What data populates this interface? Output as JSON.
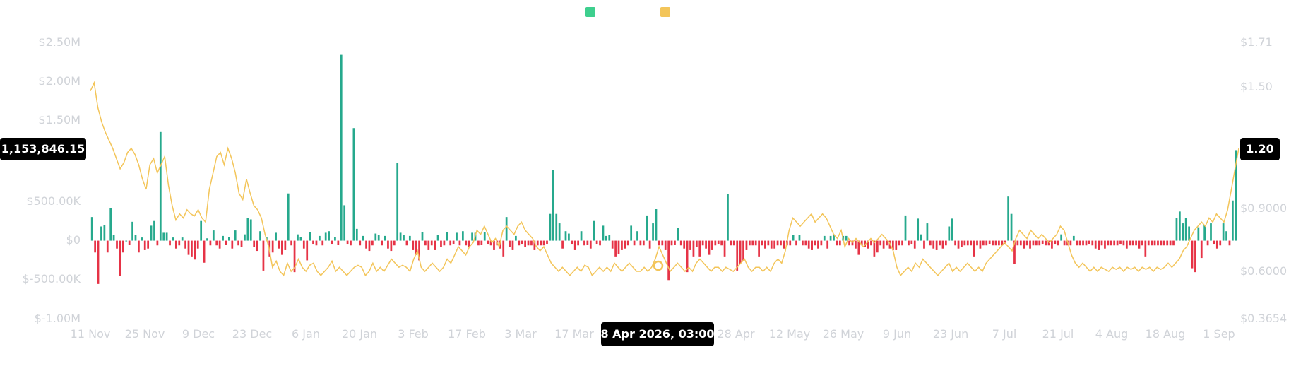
{
  "colors": {
    "positive": "#26a98d",
    "negative": "#e63346",
    "price_line": "#f3c55a",
    "legend_green": "#3ecf8e",
    "legend_yellow": "#f3c55a",
    "axis_text": "#d0d3d8",
    "badge_bg": "#000000",
    "badge_text": "#ffffff"
  },
  "legend": [
    {
      "icon": "green-square-icon",
      "label": ""
    },
    {
      "icon": "yellow-square-icon",
      "label": ""
    }
  ],
  "tooltip": {
    "left_value": "1,153,846.15",
    "right_value": "1.20",
    "date": "8 Apr 2026, 03:00"
  },
  "chart_data": {
    "type": "bar",
    "title": "",
    "xlabel": "",
    "ylabel": "",
    "grid": false,
    "legend_position": "top-center",
    "x_ticks": [
      "11 Nov",
      "25 Nov",
      "9 Dec",
      "23 Dec",
      "6 Jan",
      "20 Jan",
      "3 Feb",
      "17 Feb",
      "3 Mar",
      "17 Mar",
      "28 Apr",
      "12 May",
      "26 May",
      "9 Jun",
      "23 Jun",
      "7 Jul",
      "21 Jul",
      "4 Aug",
      "18 Aug",
      "1 Sep"
    ],
    "y_left_ticks": [
      "$2.50M",
      "$2.00M",
      "$1.50M",
      "$500.00K",
      "$0",
      "$-500.00K",
      "$-1.00M"
    ],
    "y_left_range": [
      -1000000,
      2500000
    ],
    "y_right_ticks": [
      "$1.71",
      "$1.50",
      "$0.9000",
      "$0.6000",
      "$0.3654"
    ],
    "series": [
      {
        "type": "bar",
        "values": [
          300000,
          -150000,
          -550000,
          180000,
          200000,
          -150000,
          410000,
          70000,
          -100000,
          -450000,
          -150000,
          0,
          -50000,
          240000,
          70000,
          -150000,
          40000,
          -120000,
          -100000,
          190000,
          250000,
          -60000,
          1380000,
          100000,
          100000,
          -60000,
          40000,
          -100000,
          -60000,
          40000,
          -100000,
          -180000,
          -200000,
          -240000,
          -100000,
          250000,
          -280000,
          30000,
          -60000,
          130000,
          -60000,
          -100000,
          60000,
          -50000,
          50000,
          -100000,
          130000,
          -60000,
          -80000,
          80000,
          290000,
          270000,
          -80000,
          -130000,
          120000,
          -380000,
          50000,
          -200000,
          -150000,
          100000,
          -100000,
          -180000,
          -120000,
          600000,
          -60000,
          -400000,
          80000,
          50000,
          -100000,
          -250000,
          110000,
          -40000,
          -60000,
          60000,
          -60000,
          100000,
          120000,
          -40000,
          50000,
          -50000,
          2360000,
          450000,
          -40000,
          -60000,
          1430000,
          150000,
          -60000,
          60000,
          -100000,
          -130000,
          -60000,
          90000,
          70000,
          -60000,
          60000,
          -100000,
          -130000,
          -60000,
          990000,
          100000,
          70000,
          -60000,
          60000,
          -120000,
          -180000,
          -250000,
          110000,
          -60000,
          -120000,
          -60000,
          -120000,
          70000,
          -80000,
          -60000,
          110000,
          -60000,
          -40000,
          100000,
          -60000,
          120000,
          -60000,
          -80000,
          100000,
          100000,
          -60000,
          -50000,
          110000,
          -40000,
          -60000,
          -120000,
          -60000,
          -100000,
          -200000,
          300000,
          -80000,
          -120000,
          60000,
          -60000,
          -40000,
          -80000,
          -60000,
          -60000,
          -120000,
          -60000,
          -60000,
          -60000,
          -40000,
          340000,
          900000,
          340000,
          220000,
          -100000,
          120000,
          90000,
          -40000,
          -120000,
          -60000,
          120000,
          -60000,
          -50000,
          -100000,
          250000,
          -40000,
          -60000,
          190000,
          60000,
          70000,
          -100000,
          -200000,
          -170000,
          -120000,
          -100000,
          -60000,
          190000,
          -60000,
          120000,
          -60000,
          -60000,
          320000,
          -100000,
          220000,
          400000,
          -60000,
          -60000,
          -120000,
          -500000,
          -60000,
          -50000,
          160000,
          -60000,
          -100000,
          -400000,
          -120000,
          -200000,
          -80000,
          -200000,
          -60000,
          -100000,
          -180000,
          -120000,
          -60000,
          -40000,
          -60000,
          -200000,
          590000,
          -60000,
          -60000,
          -380000,
          -300000,
          -260000,
          -120000,
          -60000,
          -60000,
          -60000,
          -200000,
          -60000,
          -100000,
          -60000,
          -100000,
          -100000,
          -60000,
          -60000,
          -100000,
          -60000,
          -60000,
          70000,
          -60000,
          70000,
          -60000,
          -60000,
          -100000,
          -120000,
          -60000,
          -100000,
          -60000,
          60000,
          -100000,
          60000,
          80000,
          -60000,
          -60000,
          60000,
          60000,
          -60000,
          -60000,
          -100000,
          -180000,
          -60000,
          -80000,
          -100000,
          -60000,
          -200000,
          -150000,
          -60000,
          -100000,
          -60000,
          -100000,
          -120000,
          -120000,
          -60000,
          -60000,
          320000,
          -60000,
          -40000,
          -100000,
          280000,
          80000,
          -100000,
          220000,
          -60000,
          -100000,
          -120000,
          -60000,
          -100000,
          -60000,
          180000,
          280000,
          -60000,
          -100000,
          -80000,
          -60000,
          -60000,
          -60000,
          -200000,
          -60000,
          -100000,
          -60000,
          -60000,
          -40000,
          -60000,
          -60000,
          -60000,
          -60000,
          -40000,
          560000,
          340000,
          -300000,
          -60000,
          -60000,
          -100000,
          -60000,
          -100000,
          -60000,
          -60000,
          -60000,
          -40000,
          -60000,
          -60000,
          -100000,
          -40000,
          -60000,
          80000,
          -60000,
          -60000,
          -60000,
          60000,
          -60000,
          -60000,
          -60000,
          -60000,
          -40000,
          -60000,
          -100000,
          -120000,
          -60000,
          -100000,
          -60000,
          -60000,
          -60000,
          -60000,
          -40000,
          -60000,
          -100000,
          -60000,
          -60000,
          -60000,
          -100000,
          -60000,
          -200000,
          -60000,
          -60000,
          -60000,
          -60000,
          -60000,
          -60000,
          -60000,
          -60000,
          -60000,
          290000,
          370000,
          220000,
          290000,
          180000,
          -350000,
          -400000,
          170000,
          -220000,
          200000,
          -60000,
          220000,
          -40000,
          -100000,
          -60000,
          220000,
          120000,
          -60000,
          510000,
          1150000
        ]
      },
      {
        "type": "line",
        "name": "",
        "axis": "right",
        "values": [
          1.48,
          1.52,
          1.4,
          1.33,
          1.28,
          1.24,
          1.2,
          1.15,
          1.1,
          1.13,
          1.18,
          1.2,
          1.17,
          1.12,
          1.05,
          1.0,
          1.12,
          1.15,
          1.08,
          1.12,
          1.16,
          1.02,
          0.92,
          0.85,
          0.88,
          0.86,
          0.9,
          0.88,
          0.87,
          0.9,
          0.86,
          0.84,
          1.0,
          1.08,
          1.16,
          1.18,
          1.12,
          1.2,
          1.15,
          1.08,
          0.98,
          0.95,
          1.05,
          0.98,
          0.92,
          0.9,
          0.86,
          0.78,
          0.72,
          0.62,
          0.65,
          0.6,
          0.58,
          0.64,
          0.6,
          0.62,
          0.66,
          0.62,
          0.6,
          0.63,
          0.64,
          0.6,
          0.58,
          0.6,
          0.62,
          0.65,
          0.6,
          0.62,
          0.6,
          0.58,
          0.6,
          0.62,
          0.63,
          0.62,
          0.58,
          0.6,
          0.64,
          0.6,
          0.62,
          0.6,
          0.63,
          0.66,
          0.64,
          0.62,
          0.63,
          0.62,
          0.6,
          0.66,
          0.7,
          0.62,
          0.6,
          0.62,
          0.64,
          0.62,
          0.6,
          0.62,
          0.66,
          0.64,
          0.68,
          0.72,
          0.7,
          0.68,
          0.72,
          0.74,
          0.8,
          0.78,
          0.82,
          0.78,
          0.74,
          0.76,
          0.72,
          0.8,
          0.82,
          0.8,
          0.78,
          0.82,
          0.84,
          0.8,
          0.78,
          0.76,
          0.72,
          0.7,
          0.72,
          0.68,
          0.64,
          0.62,
          0.6,
          0.62,
          0.6,
          0.58,
          0.6,
          0.62,
          0.6,
          0.63,
          0.62,
          0.58,
          0.6,
          0.62,
          0.6,
          0.62,
          0.6,
          0.64,
          0.62,
          0.6,
          0.62,
          0.64,
          0.62,
          0.6,
          0.6,
          0.62,
          0.6,
          0.62,
          0.66,
          0.72,
          0.68,
          0.64,
          0.6,
          0.62,
          0.64,
          0.62,
          0.6,
          0.62,
          0.6,
          0.64,
          0.66,
          0.64,
          0.62,
          0.6,
          0.62,
          0.62,
          0.6,
          0.62,
          0.61,
          0.6,
          0.62,
          0.64,
          0.66,
          0.62,
          0.6,
          0.62,
          0.62,
          0.6,
          0.62,
          0.6,
          0.64,
          0.66,
          0.64,
          0.7,
          0.8,
          0.86,
          0.84,
          0.82,
          0.84,
          0.86,
          0.88,
          0.84,
          0.86,
          0.88,
          0.86,
          0.82,
          0.78,
          0.76,
          0.8,
          0.72,
          0.76,
          0.74,
          0.76,
          0.74,
          0.72,
          0.74,
          0.76,
          0.74,
          0.76,
          0.78,
          0.76,
          0.74,
          0.7,
          0.62,
          0.58,
          0.6,
          0.62,
          0.6,
          0.64,
          0.62,
          0.66,
          0.64,
          0.62,
          0.6,
          0.58,
          0.6,
          0.62,
          0.64,
          0.6,
          0.62,
          0.6,
          0.62,
          0.64,
          0.62,
          0.6,
          0.62,
          0.6,
          0.64,
          0.66,
          0.68,
          0.7,
          0.72,
          0.74,
          0.72,
          0.7,
          0.76,
          0.8,
          0.78,
          0.76,
          0.8,
          0.78,
          0.76,
          0.78,
          0.76,
          0.74,
          0.76,
          0.78,
          0.82,
          0.8,
          0.74,
          0.68,
          0.64,
          0.62,
          0.64,
          0.62,
          0.6,
          0.62,
          0.6,
          0.62,
          0.61,
          0.6,
          0.62,
          0.61,
          0.62,
          0.6,
          0.62,
          0.61,
          0.62,
          0.6,
          0.62,
          0.61,
          0.62,
          0.6,
          0.62,
          0.61,
          0.62,
          0.64,
          0.62,
          0.64,
          0.66,
          0.7,
          0.72,
          0.76,
          0.8,
          0.82,
          0.84,
          0.82,
          0.86,
          0.84,
          0.88,
          0.86,
          0.84,
          0.9,
          1.0,
          1.1,
          1.2
        ]
      }
    ]
  }
}
